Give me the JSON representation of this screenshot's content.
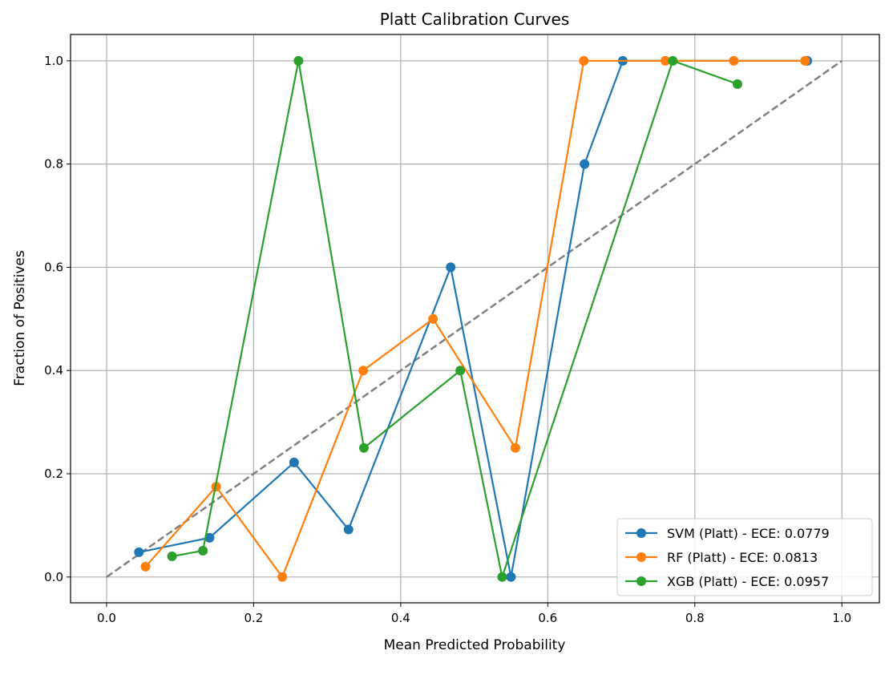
{
  "chart_data": {
    "type": "line",
    "title": "Platt Calibration Curves",
    "xlabel": "Mean Predicted Probability",
    "ylabel": "Fraction of Positives",
    "xlim": [
      -0.049,
      1.051
    ],
    "ylim": [
      -0.05,
      1.051
    ],
    "xticks": [
      0.0,
      0.2,
      0.4,
      0.6,
      0.8,
      1.0
    ],
    "yticks": [
      0.0,
      0.2,
      0.4,
      0.6,
      0.8,
      1.0
    ],
    "xtick_labels": [
      "0.0",
      "0.2",
      "0.4",
      "0.6",
      "0.8",
      "1.0"
    ],
    "ytick_labels": [
      "0.0",
      "0.2",
      "0.4",
      "0.6",
      "0.8",
      "1.0"
    ],
    "grid": true,
    "legend_position": "lower-right",
    "reference_line": {
      "x": [
        0,
        1
      ],
      "y": [
        0,
        1
      ],
      "style": "dashed",
      "color": "#808080"
    },
    "series": [
      {
        "name": "SVM (Platt) - ECE: 0.0779",
        "color": "#1f77b4",
        "x": [
          0.044,
          0.14,
          0.255,
          0.329,
          0.468,
          0.55,
          0.65,
          0.702,
          0.953
        ],
        "y": [
          0.048,
          0.076,
          0.222,
          0.092,
          0.6,
          0.0,
          0.8,
          1.0,
          1.0
        ]
      },
      {
        "name": "RF (Platt) - ECE: 0.0813",
        "color": "#ff7f0e",
        "x": [
          0.053,
          0.149,
          0.239,
          0.349,
          0.444,
          0.556,
          0.649,
          0.76,
          0.853,
          0.95
        ],
        "y": [
          0.02,
          0.175,
          0.0,
          0.4,
          0.5,
          0.25,
          1.0,
          1.0,
          1.0,
          1.0
        ]
      },
      {
        "name": "XGB (Platt) - ECE: 0.0957",
        "color": "#2ca02c",
        "x": [
          0.089,
          0.131,
          0.261,
          0.35,
          0.481,
          0.538,
          0.77,
          0.858
        ],
        "y": [
          0.04,
          0.051,
          1.0,
          0.25,
          0.4,
          0.0,
          1.0,
          0.955
        ]
      }
    ]
  }
}
